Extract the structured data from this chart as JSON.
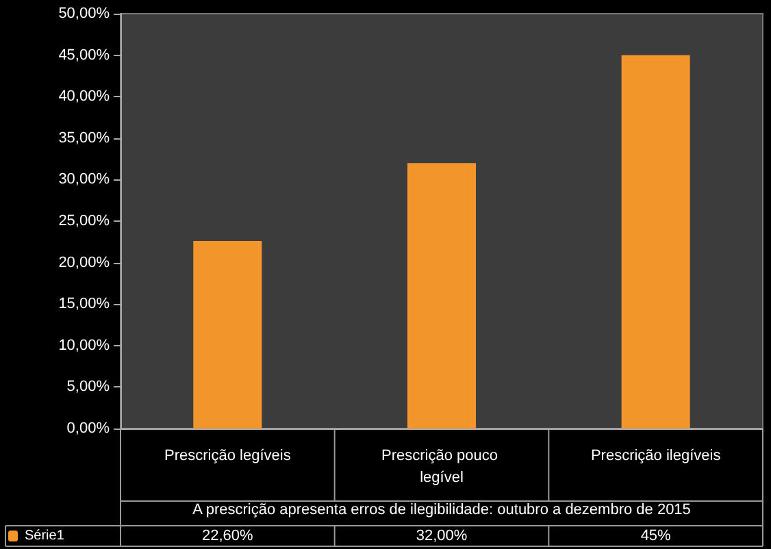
{
  "chart_data": {
    "type": "bar",
    "xlabel": "A prescrição apresenta erros de ilegibilidade: outubro a dezembro de 2015",
    "categories": [
      "Prescrição legíveis",
      "Prescrição pouco legível",
      "Prescrição ilegíveis"
    ],
    "series": [
      {
        "name": "Série1",
        "color": "#f2962c",
        "values": [
          22.6,
          32,
          45
        ],
        "value_labels": [
          "22,60%",
          "32,00%",
          "45%"
        ]
      }
    ],
    "ylim": [
      0,
      50
    ],
    "yticks": [
      {
        "value": 0,
        "label": "0,00%"
      },
      {
        "value": 5,
        "label": "5,00%"
      },
      {
        "value": 10,
        "label": "10,00%"
      },
      {
        "value": 15,
        "label": "15,00%"
      },
      {
        "value": 20,
        "label": "20,00%"
      },
      {
        "value": 25,
        "label": "25,00%"
      },
      {
        "value": 30,
        "label": "30,00%"
      },
      {
        "value": 35,
        "label": "35,00%"
      },
      {
        "value": 40,
        "label": "40,00%"
      },
      {
        "value": 45,
        "label": "45,00%"
      },
      {
        "value": 50,
        "label": "50,00%"
      }
    ],
    "legend": "bottom left",
    "grid": false
  }
}
